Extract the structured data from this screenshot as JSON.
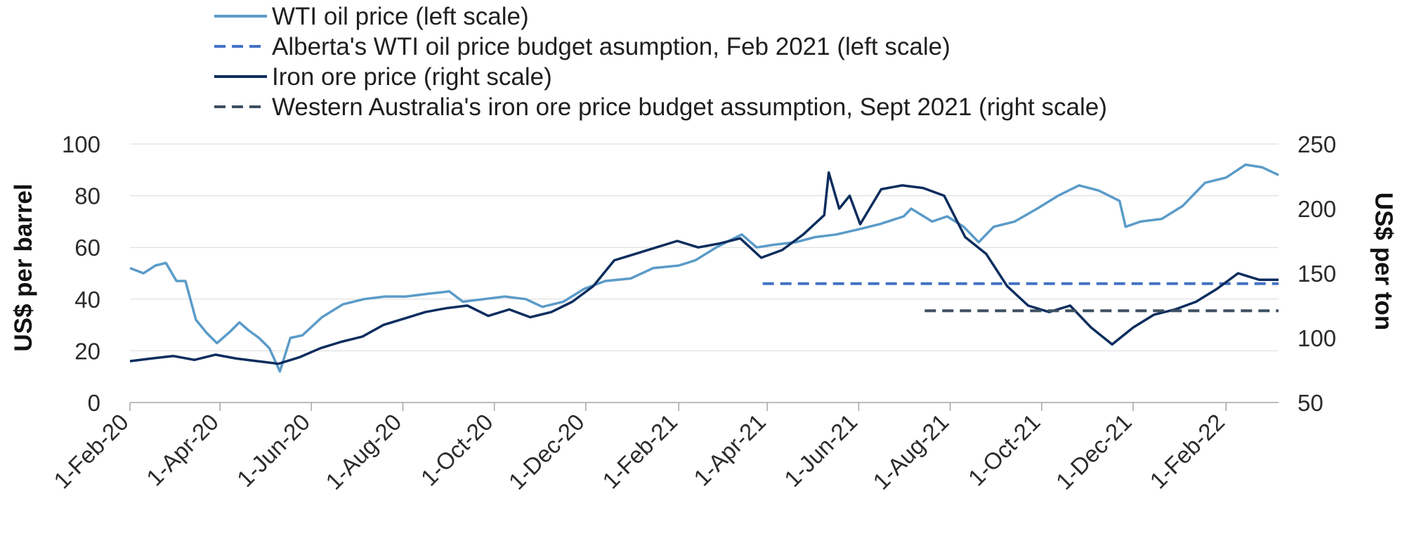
{
  "chart_data": {
    "type": "line",
    "title": "",
    "x_axis": {
      "type": "date",
      "min": "2020-02-01",
      "max": "2022-03-08",
      "tick_labels": [
        "1-Feb-20",
        "1-Apr-20",
        "1-Jun-20",
        "1-Aug-20",
        "1-Oct-20",
        "1-Dec-20",
        "1-Feb-21",
        "1-Apr-21",
        "1-Jun-21",
        "1-Aug-21",
        "1-Oct-21",
        "1-Dec-21",
        "1-Feb-22"
      ],
      "tick_dates": [
        "2020-02-01",
        "2020-04-01",
        "2020-06-01",
        "2020-08-01",
        "2020-10-01",
        "2020-12-01",
        "2021-02-01",
        "2021-04-01",
        "2021-06-01",
        "2021-08-01",
        "2021-10-01",
        "2021-12-01",
        "2022-02-01"
      ]
    },
    "y_left": {
      "label": "US$ per barrel",
      "range": [
        0,
        100
      ],
      "ticks": [
        "0",
        "20",
        "40",
        "60",
        "80",
        "100"
      ]
    },
    "y_right": {
      "label": "US$ per ton",
      "range": [
        50,
        250
      ],
      "ticks": [
        "50",
        "100",
        "150",
        "200",
        "250"
      ]
    },
    "grid": "horizontal",
    "legend_position": "top",
    "series": [
      {
        "name": "WTI oil price (left scale)",
        "axis": "left",
        "style": "solid",
        "color": "#5b9bc8",
        "points": [
          [
            "2020-02-01",
            52
          ],
          [
            "2020-02-10",
            50
          ],
          [
            "2020-02-18",
            53
          ],
          [
            "2020-02-25",
            54
          ],
          [
            "2020-03-03",
            47
          ],
          [
            "2020-03-09",
            47
          ],
          [
            "2020-03-16",
            32
          ],
          [
            "2020-03-23",
            27
          ],
          [
            "2020-03-30",
            23
          ],
          [
            "2020-04-07",
            27
          ],
          [
            "2020-04-14",
            31
          ],
          [
            "2020-04-20",
            28
          ],
          [
            "2020-04-27",
            25
          ],
          [
            "2020-05-04",
            21
          ],
          [
            "2020-05-11",
            12
          ],
          [
            "2020-05-18",
            25
          ],
          [
            "2020-05-26",
            26
          ],
          [
            "2020-06-08",
            33
          ],
          [
            "2020-06-22",
            38
          ],
          [
            "2020-07-06",
            40
          ],
          [
            "2020-07-20",
            41
          ],
          [
            "2020-08-03",
            41
          ],
          [
            "2020-08-17",
            42
          ],
          [
            "2020-09-01",
            43
          ],
          [
            "2020-09-10",
            39
          ],
          [
            "2020-09-24",
            40
          ],
          [
            "2020-10-08",
            41
          ],
          [
            "2020-10-22",
            40
          ],
          [
            "2020-11-02",
            37
          ],
          [
            "2020-11-16",
            39
          ],
          [
            "2020-11-30",
            44
          ],
          [
            "2020-12-14",
            47
          ],
          [
            "2020-12-31",
            48
          ],
          [
            "2021-01-15",
            52
          ],
          [
            "2021-02-01",
            53
          ],
          [
            "2021-02-12",
            55
          ],
          [
            "2021-02-26",
            60
          ],
          [
            "2021-03-08",
            63
          ],
          [
            "2021-03-15",
            65
          ],
          [
            "2021-03-25",
            60
          ],
          [
            "2021-04-05",
            61
          ],
          [
            "2021-04-20",
            62
          ],
          [
            "2021-05-03",
            64
          ],
          [
            "2021-05-17",
            65
          ],
          [
            "2021-06-01",
            67
          ],
          [
            "2021-06-15",
            69
          ],
          [
            "2021-07-01",
            72
          ],
          [
            "2021-07-06",
            75
          ],
          [
            "2021-07-20",
            70
          ],
          [
            "2021-07-30",
            72
          ],
          [
            "2021-08-10",
            68
          ],
          [
            "2021-08-20",
            62
          ],
          [
            "2021-08-30",
            68
          ],
          [
            "2021-09-13",
            70
          ],
          [
            "2021-09-28",
            75
          ],
          [
            "2021-10-12",
            80
          ],
          [
            "2021-10-26",
            84
          ],
          [
            "2021-11-08",
            82
          ],
          [
            "2021-11-22",
            78
          ],
          [
            "2021-11-26",
            68
          ],
          [
            "2021-12-06",
            70
          ],
          [
            "2021-12-20",
            71
          ],
          [
            "2022-01-03",
            76
          ],
          [
            "2022-01-18",
            85
          ],
          [
            "2022-02-01",
            87
          ],
          [
            "2022-02-14",
            92
          ],
          [
            "2022-02-25",
            91
          ],
          [
            "2022-03-08",
            88
          ]
        ]
      },
      {
        "name": "Alberta's WTI oil price budget asumption, Feb 2021 (left scale)",
        "axis": "left",
        "style": "dashed",
        "color": "#4472c4",
        "points": [
          [
            "2021-03-29",
            46
          ],
          [
            "2022-03-08",
            46
          ]
        ]
      },
      {
        "name": "Iron ore price (right scale)",
        "axis": "right",
        "style": "solid",
        "color": "#0c2d5e",
        "points": [
          [
            "2020-02-01",
            82
          ],
          [
            "2020-02-15",
            84
          ],
          [
            "2020-03-01",
            86
          ],
          [
            "2020-03-15",
            83
          ],
          [
            "2020-03-29",
            87
          ],
          [
            "2020-04-12",
            84
          ],
          [
            "2020-04-26",
            82
          ],
          [
            "2020-05-10",
            80
          ],
          [
            "2020-05-24",
            85
          ],
          [
            "2020-06-07",
            92
          ],
          [
            "2020-06-21",
            97
          ],
          [
            "2020-07-05",
            101
          ],
          [
            "2020-07-19",
            110
          ],
          [
            "2020-08-02",
            115
          ],
          [
            "2020-08-16",
            120
          ],
          [
            "2020-08-30",
            123
          ],
          [
            "2020-09-13",
            125
          ],
          [
            "2020-09-27",
            117
          ],
          [
            "2020-10-11",
            122
          ],
          [
            "2020-10-25",
            116
          ],
          [
            "2020-11-08",
            120
          ],
          [
            "2020-11-22",
            128
          ],
          [
            "2020-12-06",
            140
          ],
          [
            "2020-12-20",
            160
          ],
          [
            "2021-01-03",
            165
          ],
          [
            "2021-01-17",
            170
          ],
          [
            "2021-01-31",
            175
          ],
          [
            "2021-02-14",
            170
          ],
          [
            "2021-02-28",
            173
          ],
          [
            "2021-03-14",
            177
          ],
          [
            "2021-03-28",
            162
          ],
          [
            "2021-04-11",
            168
          ],
          [
            "2021-04-25",
            180
          ],
          [
            "2021-05-09",
            195
          ],
          [
            "2021-05-12",
            228
          ],
          [
            "2021-05-19",
            200
          ],
          [
            "2021-05-26",
            210
          ],
          [
            "2021-06-02",
            188
          ],
          [
            "2021-06-16",
            215
          ],
          [
            "2021-06-30",
            218
          ],
          [
            "2021-07-14",
            216
          ],
          [
            "2021-07-28",
            210
          ],
          [
            "2021-08-11",
            178
          ],
          [
            "2021-08-25",
            165
          ],
          [
            "2021-09-08",
            140
          ],
          [
            "2021-09-22",
            125
          ],
          [
            "2021-10-06",
            120
          ],
          [
            "2021-10-20",
            125
          ],
          [
            "2021-11-03",
            108
          ],
          [
            "2021-11-17",
            95
          ],
          [
            "2021-12-01",
            108
          ],
          [
            "2021-12-15",
            118
          ],
          [
            "2021-12-29",
            122
          ],
          [
            "2022-01-12",
            128
          ],
          [
            "2022-01-26",
            138
          ],
          [
            "2022-02-09",
            150
          ],
          [
            "2022-02-23",
            145
          ],
          [
            "2022-03-08",
            145
          ]
        ]
      },
      {
        "name": "Western Australia's iron ore price budget assumption, Sept 2021 (right scale)",
        "axis": "right",
        "style": "dashed",
        "color": "#3d4f61",
        "points": [
          [
            "2021-07-15",
            121
          ],
          [
            "2022-03-08",
            121
          ]
        ]
      }
    ]
  }
}
